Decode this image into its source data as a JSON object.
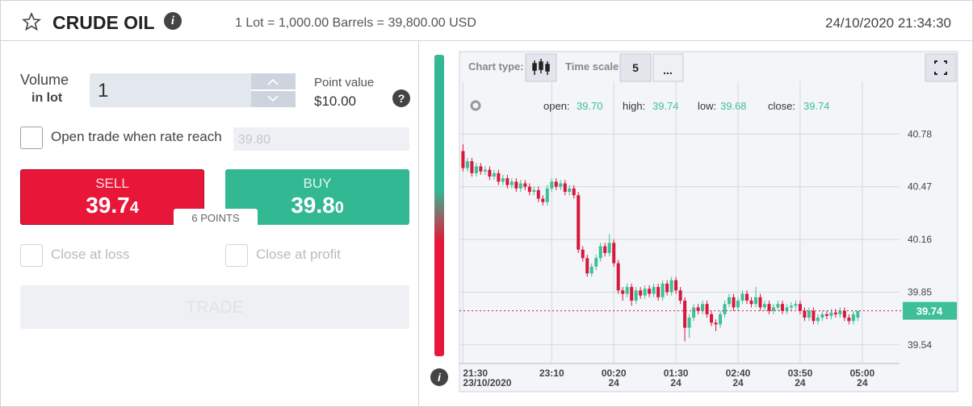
{
  "header": {
    "title": "CRUDE OIL",
    "info_icon": "i",
    "lot_info": "1 Lot = 1,000.00 Barrels = 39,800.00 USD",
    "datetime": "24/10/2020 21:34:30"
  },
  "form": {
    "volume_label": "Volume",
    "volume_unit": "in lot",
    "volume_value": "1",
    "point_value_label": "Point value",
    "point_value": "$10.00",
    "help": "?",
    "open_trade_label": "Open trade when rate reach",
    "rate_value": "39.80",
    "sell": {
      "label": "SELL",
      "price_main": "39.7",
      "price_small": "4"
    },
    "buy": {
      "label": "BUY",
      "price_main": "39.8",
      "price_small": "0"
    },
    "spread": "6 POINTS",
    "close_loss": "Close at loss",
    "close_profit": "Close at profit",
    "trade": "TRADE",
    "info": "i"
  },
  "toolbar": {
    "chart_type": "Chart type:",
    "time_scale": "Time scale",
    "scale_value": "5",
    "more": "..."
  },
  "chart_data": {
    "type": "candlestick",
    "up_color": "#3dbf98",
    "down_color": "#d8173c",
    "grid": true,
    "ohlc_info": [
      {
        "name": "open:",
        "value": {
          "value": 39.7,
          "label": "39.70"
        }
      },
      {
        "name": "high:",
        "value": 39.74
      },
      {
        "name": "low:",
        "value": 39.68
      },
      {
        "name": "close:",
        "value": 39.74
      }
    ],
    "current_price": 39.74,
    "ylim": [
      39.43,
      41.09
    ],
    "yticks": [
      39.54,
      39.85,
      40.16,
      40.47,
      40.78
    ],
    "xlim": [
      "21:26",
      "05:42"
    ],
    "xticks": [
      "21:30",
      "23:10",
      "00:20",
      "01:30",
      "02:40",
      "03:50",
      "05:00"
    ],
    "xtick_sublabels": [
      "23/10/2020",
      null,
      "24",
      "24",
      "24",
      "24",
      "24"
    ],
    "x": [
      "21:30",
      "21:35",
      "21:40",
      "21:45",
      "21:50",
      "21:55",
      "22:00",
      "22:05",
      "22:10",
      "22:15",
      "22:20",
      "22:25",
      "22:30",
      "22:35",
      "22:40",
      "22:45",
      "22:50",
      "22:55",
      "23:00",
      "23:05",
      "23:10",
      "23:15",
      "23:20",
      "23:25",
      "23:30",
      "23:35",
      "23:40",
      "23:45",
      "23:50",
      "23:55",
      "00:00",
      "00:05",
      "00:10",
      "00:15",
      "00:20",
      "00:25",
      "00:30",
      "00:35",
      "00:40",
      "00:45",
      "00:50",
      "00:55",
      "01:00",
      "01:05",
      "01:10",
      "01:15",
      "01:20",
      "01:25",
      "01:30",
      "01:35",
      "01:40",
      "01:45",
      "01:50",
      "01:55",
      "02:00",
      "02:05",
      "02:10",
      "02:15",
      "02:20",
      "02:25",
      "02:30",
      "02:35",
      "02:40",
      "02:45",
      "02:50",
      "02:55",
      "03:00",
      "03:05",
      "03:10",
      "03:15",
      "03:20",
      "03:25",
      "03:30",
      "03:35",
      "03:40",
      "03:45",
      "03:50",
      "03:55",
      "04:00",
      "04:05",
      "04:10",
      "04:15",
      "04:20",
      "04:25",
      "04:30",
      "04:35",
      "04:40",
      "04:45",
      "04:50",
      "04:55"
    ],
    "open": [
      40.68,
      40.58,
      40.62,
      40.55,
      40.59,
      40.56,
      40.57,
      40.53,
      40.55,
      40.5,
      40.52,
      40.48,
      40.5,
      40.46,
      40.49,
      40.47,
      40.44,
      40.45,
      40.4,
      40.38,
      40.46,
      40.5,
      40.47,
      40.49,
      40.44,
      40.46,
      40.42,
      40.1,
      40.05,
      39.96,
      40.0,
      40.05,
      40.12,
      40.08,
      40.14,
      40.02,
      39.86,
      39.84,
      39.88,
      39.8,
      39.86,
      39.83,
      39.87,
      39.84,
      39.88,
      39.82,
      39.9,
      39.85,
      39.92,
      39.86,
      39.8,
      39.64,
      39.7,
      39.76,
      39.74,
      39.78,
      39.72,
      39.67,
      39.66,
      39.72,
      39.78,
      39.82,
      39.76,
      39.8,
      39.84,
      39.8,
      39.78,
      39.82,
      39.76,
      39.78,
      39.74,
      39.76,
      39.78,
      39.74,
      39.76,
      39.77,
      39.78,
      39.74,
      39.7,
      39.74,
      39.68,
      39.7,
      39.72,
      39.71,
      39.73,
      39.72,
      39.74,
      39.7,
      39.68,
      39.7
    ],
    "high": [
      40.72,
      40.64,
      40.64,
      40.61,
      40.61,
      40.59,
      40.59,
      40.57,
      40.57,
      40.54,
      40.54,
      40.52,
      40.52,
      40.51,
      40.51,
      40.49,
      40.47,
      40.47,
      40.42,
      40.48,
      40.52,
      40.52,
      40.51,
      40.51,
      40.48,
      40.48,
      40.44,
      40.12,
      40.07,
      40.02,
      40.07,
      40.14,
      40.14,
      40.19,
      40.16,
      40.04,
      39.88,
      39.9,
      39.9,
      39.88,
      39.88,
      39.89,
      39.89,
      39.9,
      39.9,
      39.92,
      39.92,
      39.94,
      39.94,
      39.88,
      39.82,
      39.72,
      39.78,
      39.78,
      39.8,
      39.8,
      39.74,
      39.69,
      39.74,
      39.8,
      39.84,
      39.84,
      39.82,
      39.86,
      39.86,
      39.82,
      39.88,
      39.84,
      39.8,
      39.8,
      39.78,
      39.8,
      39.8,
      39.78,
      39.79,
      39.8,
      39.8,
      39.76,
      39.76,
      39.76,
      39.72,
      39.74,
      39.74,
      39.75,
      39.75,
      39.76,
      39.76,
      39.72,
      39.74,
      39.74
    ],
    "low": [
      40.56,
      40.56,
      40.53,
      40.53,
      40.54,
      40.54,
      40.51,
      40.51,
      40.48,
      40.48,
      40.46,
      40.46,
      40.44,
      40.44,
      40.45,
      40.42,
      40.42,
      40.38,
      40.36,
      40.36,
      40.44,
      40.45,
      40.45,
      40.42,
      40.42,
      40.4,
      40.08,
      40.03,
      39.94,
      39.94,
      39.98,
      40.03,
      40.06,
      40.06,
      40.0,
      39.84,
      39.8,
      39.82,
      39.77,
      39.78,
      39.81,
      39.81,
      39.82,
      39.82,
      39.8,
      39.8,
      39.83,
      39.83,
      39.84,
      39.78,
      39.56,
      39.58,
      39.68,
      39.72,
      39.72,
      39.7,
      39.65,
      39.62,
      39.64,
      39.7,
      39.76,
      39.74,
      39.74,
      39.78,
      39.78,
      39.76,
      39.76,
      39.74,
      39.74,
      39.72,
      39.72,
      39.74,
      39.72,
      39.72,
      39.74,
      39.75,
      39.72,
      39.68,
      39.68,
      39.66,
      39.66,
      39.68,
      39.69,
      39.69,
      39.7,
      39.7,
      39.68,
      39.66,
      39.66,
      39.68
    ],
    "close": [
      40.58,
      40.62,
      40.55,
      40.59,
      40.56,
      40.57,
      40.53,
      40.55,
      40.5,
      40.52,
      40.48,
      40.5,
      40.46,
      40.49,
      40.47,
      40.44,
      40.45,
      40.4,
      40.38,
      40.46,
      40.5,
      40.47,
      40.49,
      40.44,
      40.46,
      40.42,
      40.1,
      40.05,
      39.96,
      40.0,
      40.05,
      40.12,
      40.08,
      40.14,
      40.02,
      39.86,
      39.84,
      39.88,
      39.8,
      39.86,
      39.83,
      39.87,
      39.84,
      39.88,
      39.82,
      39.9,
      39.85,
      39.92,
      39.86,
      39.8,
      39.64,
      39.7,
      39.76,
      39.74,
      39.78,
      39.72,
      39.67,
      39.66,
      39.72,
      39.78,
      39.82,
      39.76,
      39.8,
      39.84,
      39.8,
      39.78,
      39.82,
      39.76,
      39.78,
      39.74,
      39.76,
      39.78,
      39.74,
      39.76,
      39.77,
      39.78,
      39.74,
      39.7,
      39.74,
      39.68,
      39.7,
      39.72,
      39.71,
      39.73,
      39.72,
      39.74,
      39.7,
      39.68,
      39.72,
      39.74
    ]
  }
}
